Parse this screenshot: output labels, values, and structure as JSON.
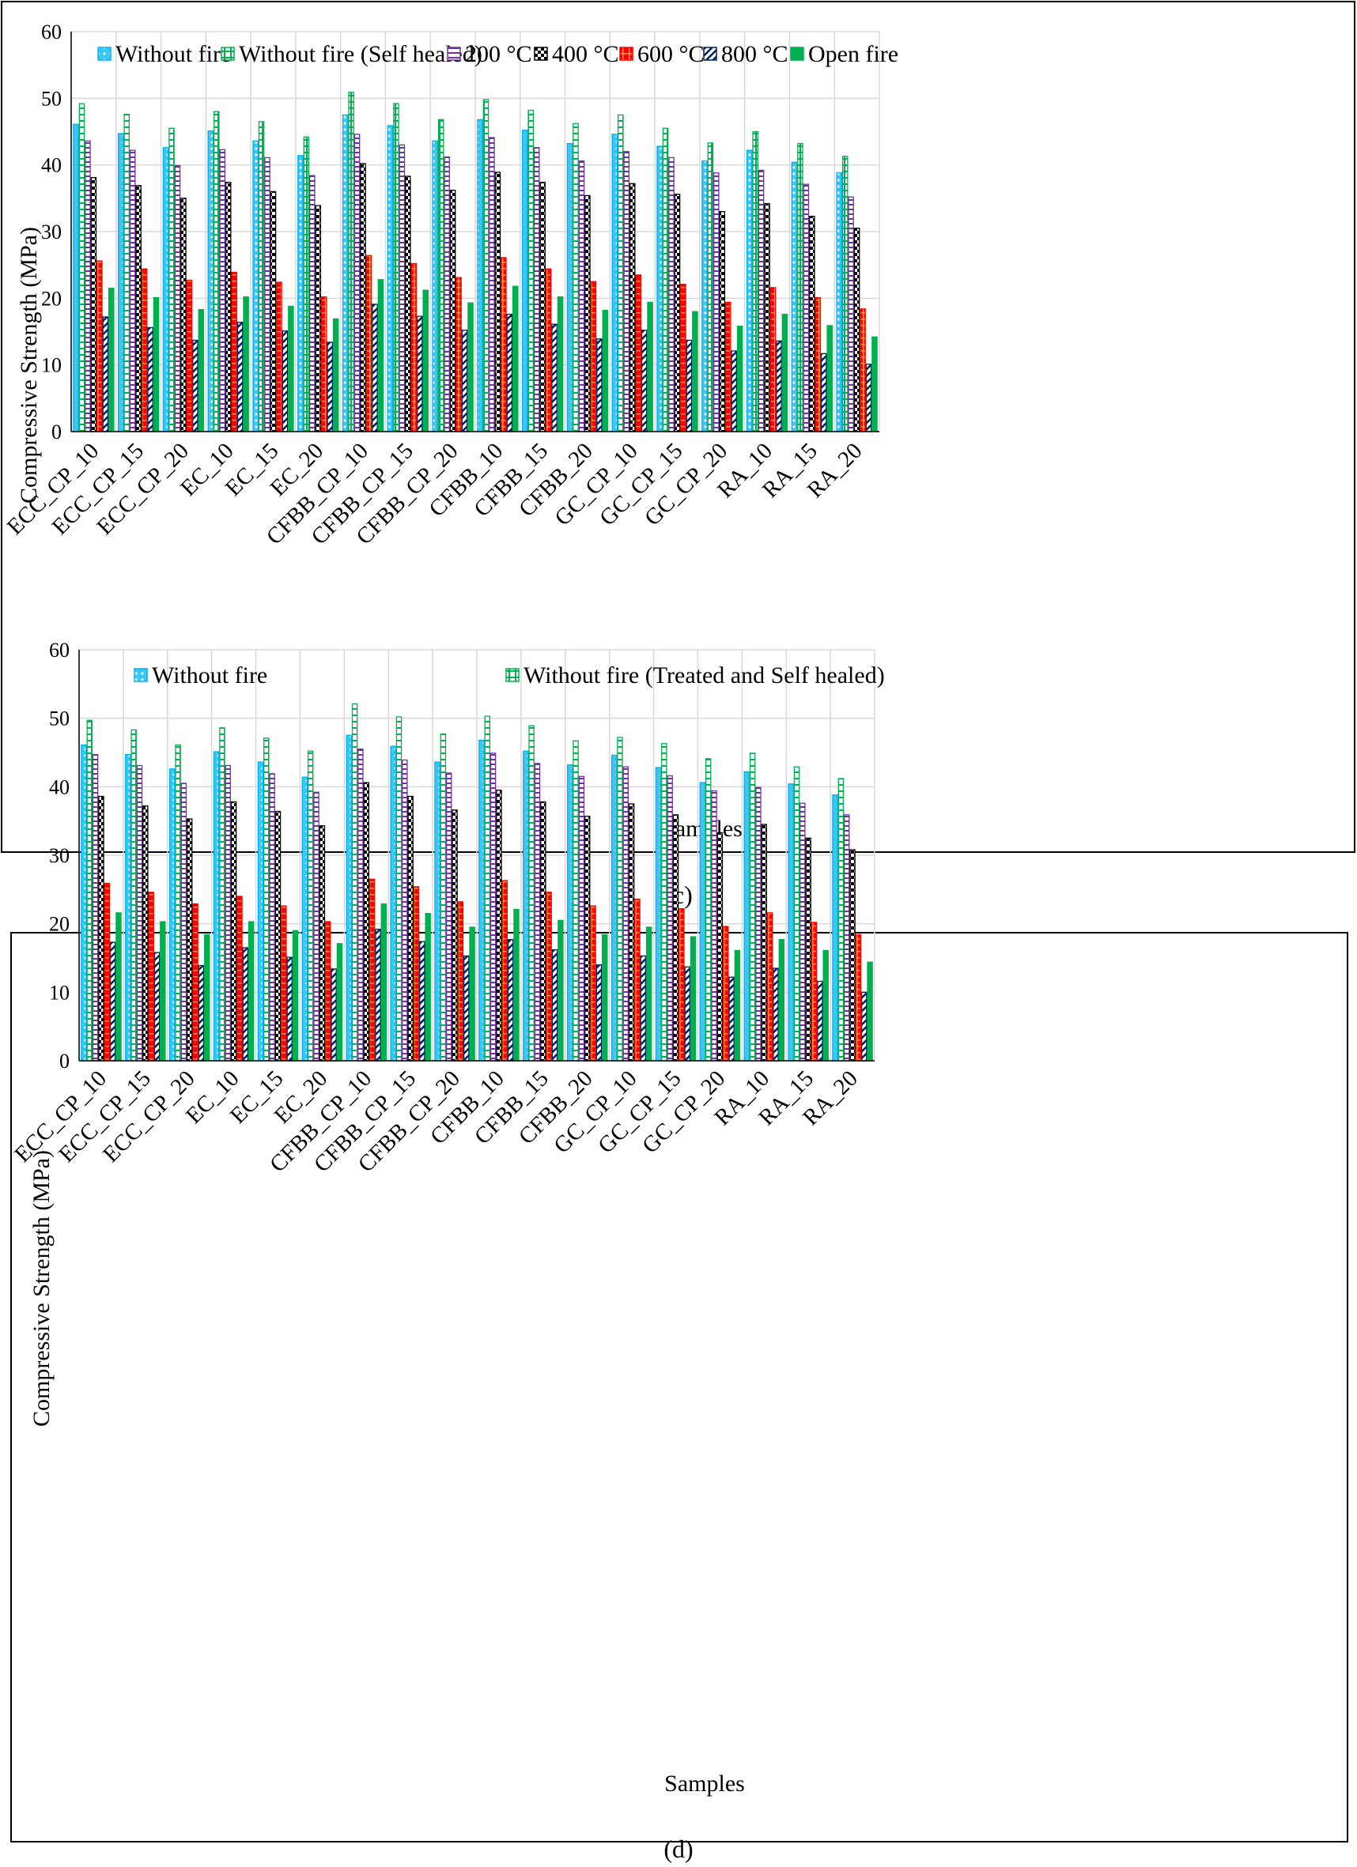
{
  "chart_data": [
    {
      "type": "bar",
      "caption": "(c)",
      "title": "",
      "xlabel": "Samples",
      "ylabel": "Compressive Strength (MPa)",
      "ylim": [
        0,
        60
      ],
      "yticks": [
        0,
        10,
        20,
        30,
        40,
        50,
        60
      ],
      "grid": true,
      "legend": "top-inside",
      "categories": [
        "ECC_CP_10",
        "ECC_CP_15",
        "ECC_CP_20",
        "EC_10",
        "EC_15",
        "EC_20",
        "CFBB_CP_10",
        "CFBB_CP_15",
        "CFBB_CP_20",
        "CFBB_10",
        "CFBB_15",
        "CFBB_20",
        "GC_CP_10",
        "GC_CP_15",
        "GC_CP_20",
        "RA_10",
        "RA_15",
        "RA_20"
      ],
      "series": [
        {
          "name": "Without fire",
          "color": "#00b0f0",
          "pattern": "dots-blue",
          "values": [
            46.1,
            44.7,
            42.6,
            45.1,
            43.6,
            41.4,
            47.5,
            45.9,
            43.6,
            46.8,
            45.2,
            43.2,
            44.6,
            42.8,
            40.6,
            42.2,
            40.4,
            38.8
          ]
        },
        {
          "name": "Without fire (Self healed)",
          "color": "#00b050",
          "pattern": "grid-green",
          "values": [
            49.2,
            47.6,
            45.5,
            48.0,
            46.5,
            44.2,
            50.9,
            49.2,
            46.8,
            49.8,
            48.2,
            46.2,
            47.5,
            45.5,
            43.3,
            45.0,
            43.2,
            41.3
          ]
        },
        {
          "name": "200 °C",
          "color": "#7030a0",
          "pattern": "hlines-purple",
          "values": [
            43.6,
            42.2,
            39.9,
            42.3,
            41.1,
            38.4,
            44.6,
            43.0,
            41.2,
            44.1,
            42.6,
            40.6,
            42.0,
            41.1,
            38.8,
            39.2,
            37.1,
            35.2
          ]
        },
        {
          "name": "400 °C",
          "color": "#000000",
          "pattern": "checker-black",
          "values": [
            38.1,
            36.9,
            35.0,
            37.4,
            36.0,
            33.9,
            40.2,
            38.3,
            36.2,
            38.9,
            37.4,
            35.4,
            37.2,
            35.6,
            33.0,
            34.2,
            32.3,
            30.5
          ]
        },
        {
          "name": "600 °C",
          "color": "#ff0000",
          "pattern": "grid-red",
          "values": [
            25.6,
            24.4,
            22.7,
            23.9,
            22.4,
            20.2,
            26.4,
            25.2,
            23.1,
            26.1,
            24.4,
            22.5,
            23.5,
            22.1,
            19.4,
            21.6,
            20.1,
            18.4
          ]
        },
        {
          "name": "800 °C",
          "color": "#002060",
          "pattern": "diag-navy",
          "values": [
            17.2,
            15.6,
            13.7,
            16.4,
            15.1,
            13.4,
            19.1,
            17.3,
            15.2,
            17.6,
            16.1,
            13.9,
            15.2,
            13.7,
            12.1,
            13.6,
            11.7,
            10.1
          ]
        },
        {
          "name": "Open fire",
          "color": "#00b050",
          "pattern": "solid-green",
          "values": [
            21.5,
            20.1,
            18.3,
            20.2,
            18.8,
            16.9,
            22.8,
            21.2,
            19.3,
            21.8,
            20.2,
            18.2,
            19.4,
            18.0,
            15.8,
            17.6,
            15.9,
            14.2
          ]
        }
      ]
    },
    {
      "type": "bar",
      "caption": "(d)",
      "title": "",
      "xlabel": "Samples",
      "ylabel": "Compressive Strength (MPa)",
      "ylim": [
        0,
        60
      ],
      "yticks": [
        0,
        10,
        20,
        30,
        40,
        50,
        60
      ],
      "grid": true,
      "legend": "top-inside",
      "categories": [
        "ECC_CP_10",
        "ECC_CP_15",
        "ECC_CP_20",
        "EC_10",
        "EC_15",
        "EC_20",
        "CFBB_CP_10",
        "CFBB_CP_15",
        "CFBB_CP_20",
        "CFBB_10",
        "CFBB_15",
        "CFBB_20",
        "GC_CP_10",
        "GC_CP_15",
        "GC_CP_20",
        "RA_10",
        "RA_15",
        "RA_20"
      ],
      "series": [
        {
          "name": "Without fire",
          "color": "#00b0f0",
          "pattern": "dots-blue",
          "values": [
            46.1,
            44.7,
            42.6,
            45.1,
            43.6,
            41.4,
            47.5,
            45.9,
            43.6,
            46.8,
            45.2,
            43.2,
            44.6,
            42.8,
            40.6,
            42.2,
            40.4,
            38.8
          ]
        },
        {
          "name": "Without fire (Treated and Self healed)",
          "color": "#00b050",
          "pattern": "grid-green",
          "values": [
            49.7,
            48.3,
            46.1,
            48.6,
            47.1,
            45.2,
            52.1,
            50.2,
            47.7,
            50.3,
            48.9,
            46.7,
            47.2,
            46.3,
            44.1,
            44.9,
            42.9,
            41.2
          ]
        },
        {
          "name": "",
          "color": "#7030a0",
          "pattern": "hlines-purple",
          "values": [
            44.7,
            43.1,
            40.5,
            43.1,
            41.9,
            39.2,
            45.5,
            43.9,
            42.0,
            44.9,
            43.4,
            41.5,
            42.9,
            41.6,
            39.4,
            39.9,
            37.6,
            35.9
          ]
        },
        {
          "name": "",
          "color": "#000000",
          "pattern": "checker-black",
          "values": [
            38.6,
            37.2,
            35.3,
            37.8,
            36.4,
            34.3,
            40.6,
            38.6,
            36.6,
            39.5,
            37.8,
            35.7,
            37.5,
            35.9,
            33.3,
            34.5,
            32.5,
            30.8
          ]
        },
        {
          "name": "",
          "color": "#ff0000",
          "pattern": "grid-red",
          "values": [
            25.9,
            24.6,
            22.9,
            24.0,
            22.6,
            20.3,
            26.5,
            25.4,
            23.2,
            26.3,
            24.6,
            22.6,
            23.6,
            22.2,
            19.6,
            21.6,
            20.2,
            18.4
          ]
        },
        {
          "name": "",
          "color": "#002060",
          "pattern": "diag-navy",
          "values": [
            17.3,
            15.8,
            13.9,
            16.5,
            15.1,
            13.4,
            19.2,
            17.4,
            15.3,
            17.7,
            16.2,
            14.0,
            15.3,
            13.7,
            12.2,
            13.5,
            11.6,
            10.0
          ]
        },
        {
          "name": "",
          "color": "#00b050",
          "pattern": "solid-green",
          "values": [
            21.6,
            20.3,
            18.4,
            20.3,
            19.0,
            17.1,
            22.9,
            21.5,
            19.5,
            22.1,
            20.5,
            18.4,
            19.5,
            18.1,
            16.1,
            17.7,
            16.1,
            14.4
          ]
        }
      ]
    }
  ]
}
